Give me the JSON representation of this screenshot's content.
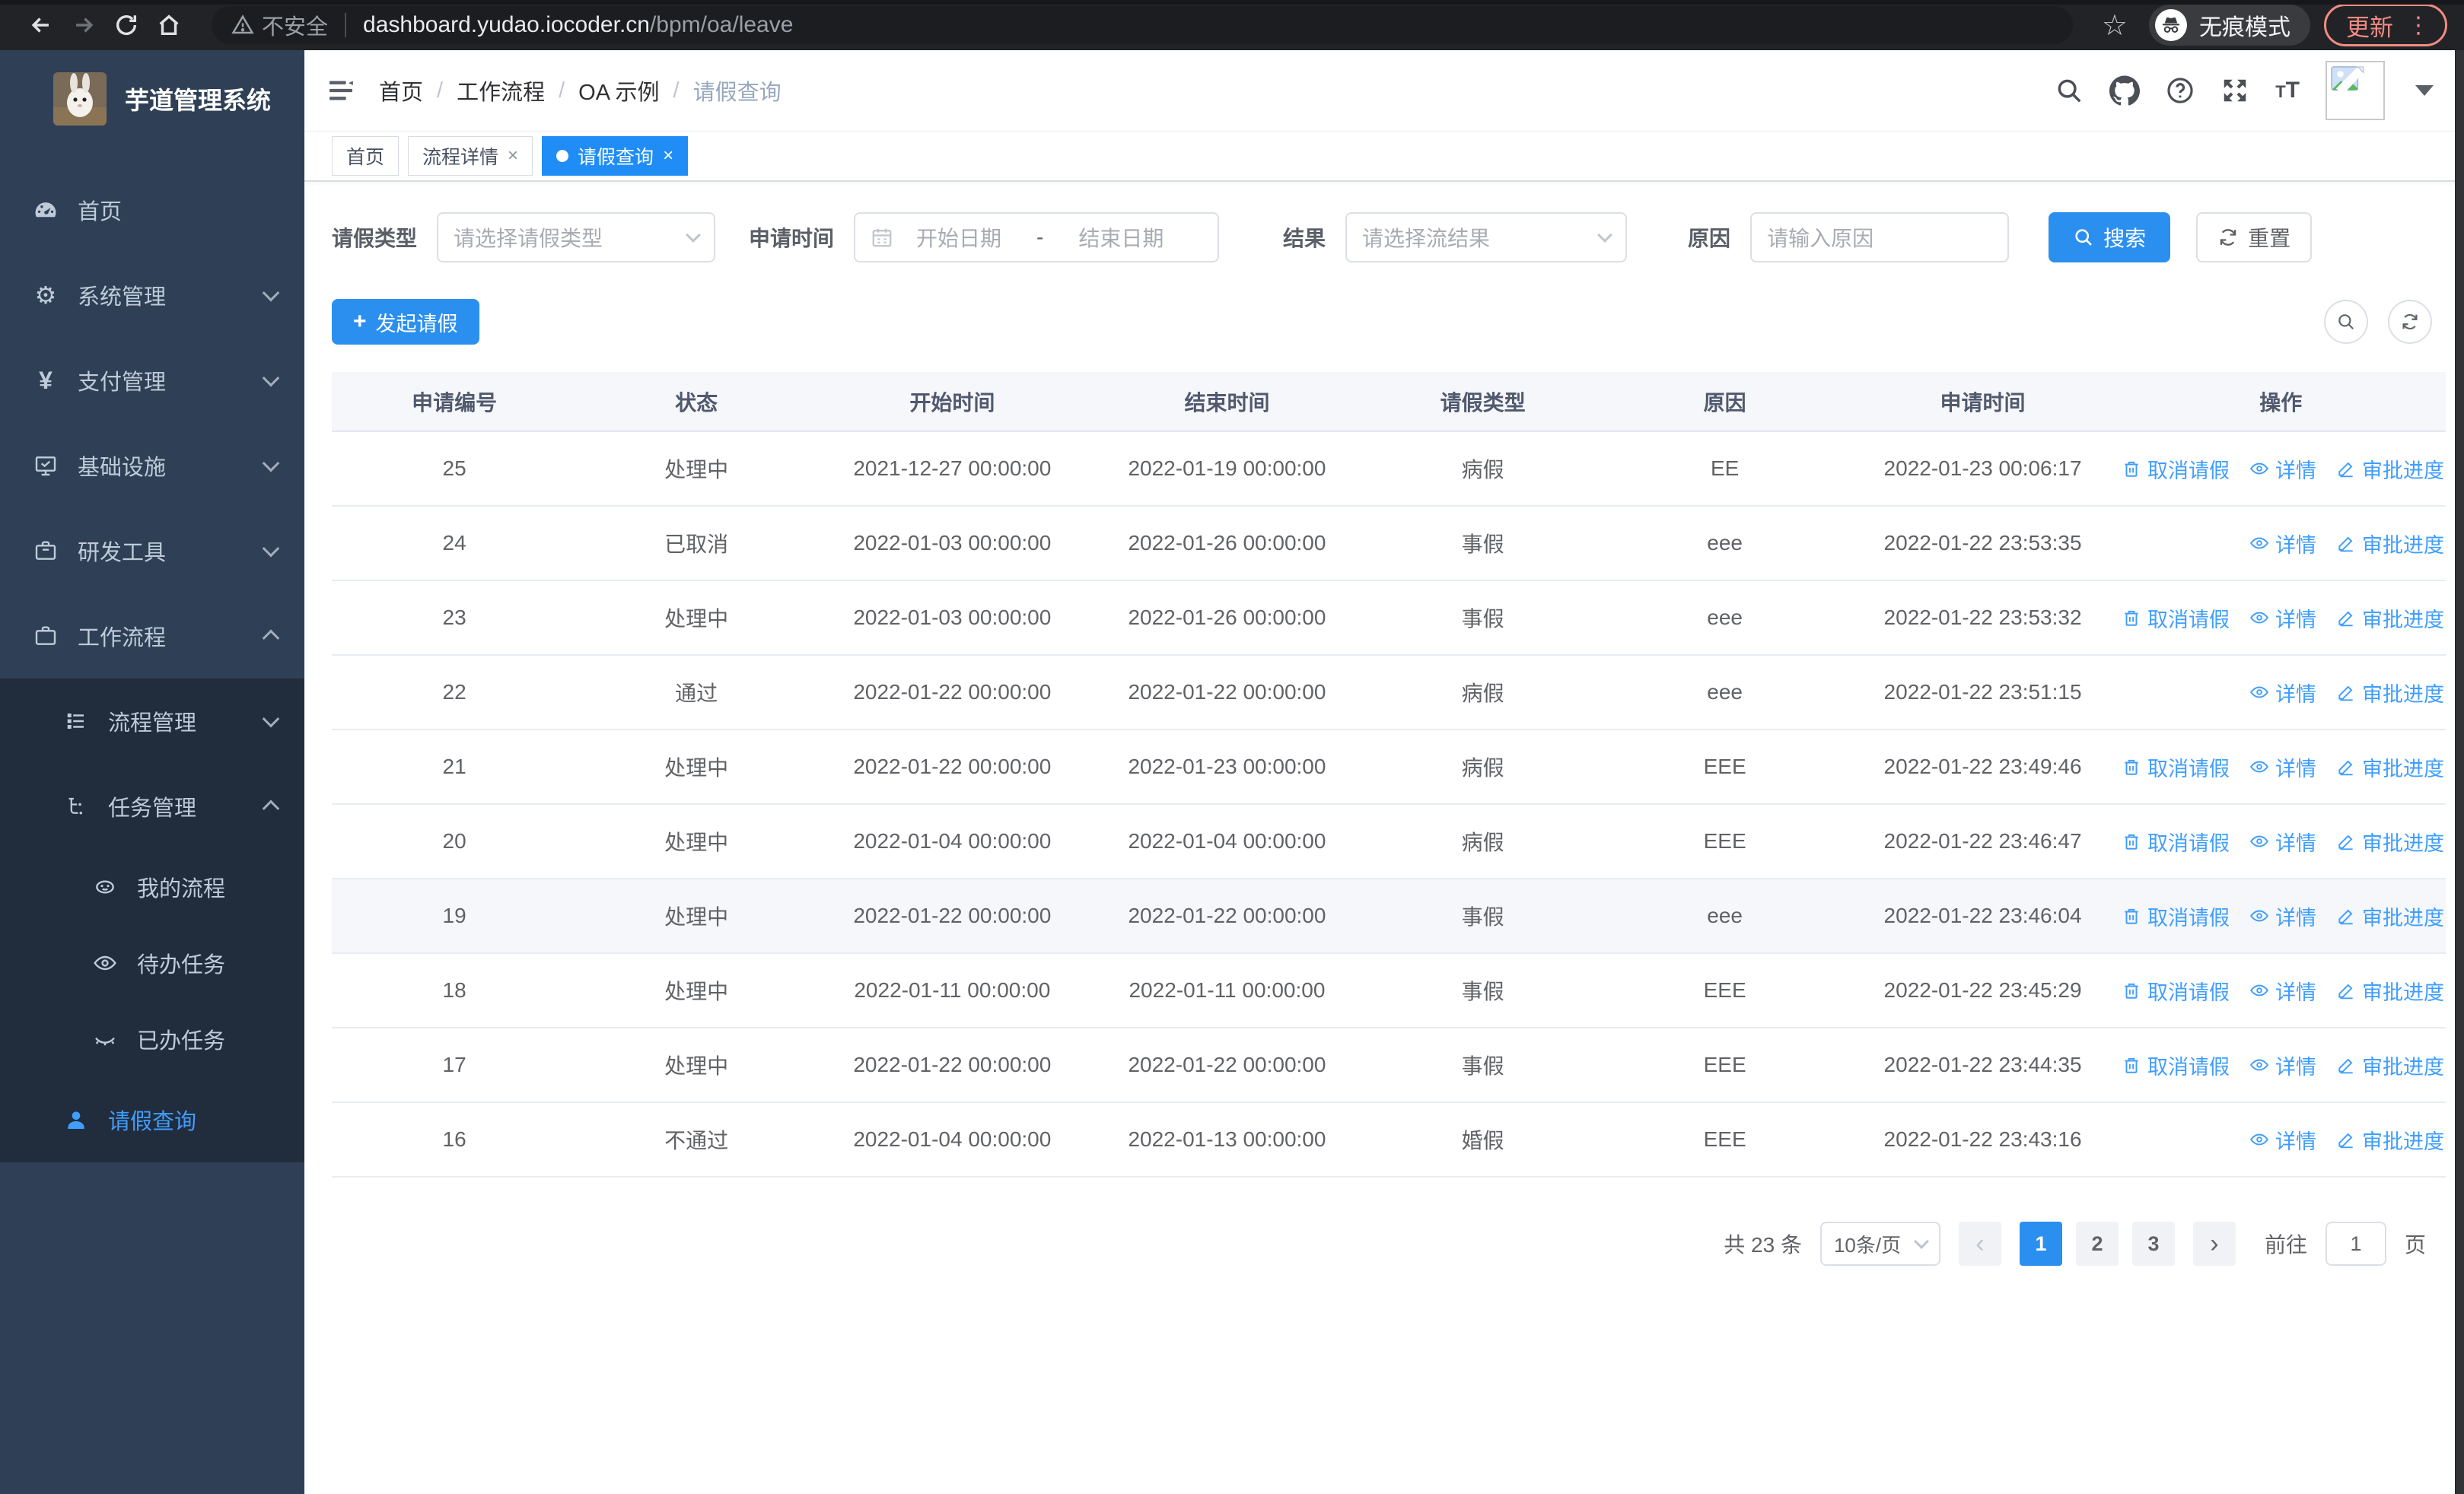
{
  "browser": {
    "security_label": "不安全",
    "url_host": "dashboard.yudao.iocoder.cn",
    "url_path": "/bpm/oa/leave",
    "incognito_label": "无痕模式",
    "update_label": "更新"
  },
  "sidebar": {
    "title": "芋道管理系统",
    "items": [
      {
        "label": "首页"
      },
      {
        "label": "系统管理"
      },
      {
        "label": "支付管理"
      },
      {
        "label": "基础设施"
      },
      {
        "label": "研发工具"
      },
      {
        "label": "工作流程"
      }
    ],
    "submenu": [
      {
        "label": "流程管理"
      },
      {
        "label": "任务管理"
      },
      {
        "label": "我的流程"
      },
      {
        "label": "待办任务"
      },
      {
        "label": "已办任务"
      },
      {
        "label": "请假查询"
      }
    ]
  },
  "header": {
    "breadcrumb": [
      "首页",
      "工作流程",
      "OA 示例",
      "请假查询"
    ]
  },
  "tabs": [
    {
      "label": "首页"
    },
    {
      "label": "流程详情"
    },
    {
      "label": "请假查询"
    }
  ],
  "filters": {
    "leave_type_label": "请假类型",
    "leave_type_placeholder": "请选择请假类型",
    "apply_time_label": "申请时间",
    "start_date_placeholder": "开始日期",
    "date_separator": "-",
    "end_date_placeholder": "结束日期",
    "result_label": "结果",
    "result_placeholder": "请选择流结果",
    "reason_label": "原因",
    "reason_placeholder": "请输入原因",
    "search_label": "搜索",
    "reset_label": "重置"
  },
  "toolbar": {
    "create_label": "发起请假"
  },
  "table": {
    "columns": [
      "申请编号",
      "状态",
      "开始时间",
      "结束时间",
      "请假类型",
      "原因",
      "申请时间",
      "操作"
    ],
    "action_labels": {
      "cancel": "取消请假",
      "detail": "详情",
      "progress": "审批进度"
    },
    "rows": [
      {
        "id": "25",
        "status": "处理中",
        "start": "2021-12-27 00:00:00",
        "end": "2022-01-19 00:00:00",
        "type": "病假",
        "reason": "EE",
        "applied": "2022-01-23 00:06:17",
        "cancellable": true,
        "highlighted": false
      },
      {
        "id": "24",
        "status": "已取消",
        "start": "2022-01-03 00:00:00",
        "end": "2022-01-26 00:00:00",
        "type": "事假",
        "reason": "eee",
        "applied": "2022-01-22 23:53:35",
        "cancellable": false,
        "highlighted": false
      },
      {
        "id": "23",
        "status": "处理中",
        "start": "2022-01-03 00:00:00",
        "end": "2022-01-26 00:00:00",
        "type": "事假",
        "reason": "eee",
        "applied": "2022-01-22 23:53:32",
        "cancellable": true,
        "highlighted": false
      },
      {
        "id": "22",
        "status": "通过",
        "start": "2022-01-22 00:00:00",
        "end": "2022-01-22 00:00:00",
        "type": "病假",
        "reason": "eee",
        "applied": "2022-01-22 23:51:15",
        "cancellable": false,
        "highlighted": false
      },
      {
        "id": "21",
        "status": "处理中",
        "start": "2022-01-22 00:00:00",
        "end": "2022-01-23 00:00:00",
        "type": "病假",
        "reason": "EEE",
        "applied": "2022-01-22 23:49:46",
        "cancellable": true,
        "highlighted": false
      },
      {
        "id": "20",
        "status": "处理中",
        "start": "2022-01-04 00:00:00",
        "end": "2022-01-04 00:00:00",
        "type": "病假",
        "reason": "EEE",
        "applied": "2022-01-22 23:46:47",
        "cancellable": true,
        "highlighted": false
      },
      {
        "id": "19",
        "status": "处理中",
        "start": "2022-01-22 00:00:00",
        "end": "2022-01-22 00:00:00",
        "type": "事假",
        "reason": "eee",
        "applied": "2022-01-22 23:46:04",
        "cancellable": true,
        "highlighted": true
      },
      {
        "id": "18",
        "status": "处理中",
        "start": "2022-01-11 00:00:00",
        "end": "2022-01-11 00:00:00",
        "type": "事假",
        "reason": "EEE",
        "applied": "2022-01-22 23:45:29",
        "cancellable": true,
        "highlighted": false
      },
      {
        "id": "17",
        "status": "处理中",
        "start": "2022-01-22 00:00:00",
        "end": "2022-01-22 00:00:00",
        "type": "事假",
        "reason": "EEE",
        "applied": "2022-01-22 23:44:35",
        "cancellable": true,
        "highlighted": false
      },
      {
        "id": "16",
        "status": "不通过",
        "start": "2022-01-04 00:00:00",
        "end": "2022-01-13 00:00:00",
        "type": "婚假",
        "reason": "EEE",
        "applied": "2022-01-22 23:43:16",
        "cancellable": false,
        "highlighted": false
      }
    ]
  },
  "pagination": {
    "total_label": "共 23 条",
    "page_size": "10条/页",
    "prev_symbol": "‹",
    "next_symbol": "›",
    "pages": [
      "1",
      "2",
      "3"
    ],
    "active_page": "1",
    "goto_label": "前往",
    "goto_value": "1",
    "page_unit": "页"
  },
  "colors": {
    "primary": "#409eff",
    "solid_blue": "#2b8ff0",
    "sidebar_bg": "#2f4056",
    "submenu_bg": "#212c3c",
    "update_red": "#f28b82",
    "table_header_bg": "#f5f7fa"
  }
}
